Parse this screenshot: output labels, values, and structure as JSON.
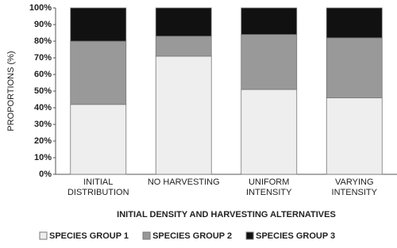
{
  "chart_data": {
    "type": "stacked_bar",
    "x_label": "INITIAL DENSITY AND HARVESTING ALTERNATIVES",
    "y_label": "PROPORTIONS (%)",
    "categories": [
      "INITIAL\nDISTRIBUTION",
      "NO HARVESTING",
      "UNIFORM\nINTENSITY",
      "VARYING\nINTENSITY"
    ],
    "series": [
      {
        "name": "SPECIES GROUP 1",
        "color": "#eeeeee",
        "values": [
          42,
          71,
          51,
          46
        ]
      },
      {
        "name": "SPECIES GROUP 2",
        "color": "#999999",
        "values": [
          38,
          12,
          33,
          36
        ]
      },
      {
        "name": "SPECIES GROUP 3",
        "color": "#111111",
        "values": [
          20,
          17,
          16,
          18
        ]
      }
    ],
    "ylim": [
      0,
      100
    ],
    "yticks": [
      {
        "value": 0,
        "label": "0%"
      },
      {
        "value": 10,
        "label": "10%"
      },
      {
        "value": 20,
        "label": "20%"
      },
      {
        "value": 30,
        "label": "30%"
      },
      {
        "value": 40,
        "label": "40%"
      },
      {
        "value": 50,
        "label": "50%"
      },
      {
        "value": 60,
        "label": "60%"
      },
      {
        "value": 70,
        "label": "70%"
      },
      {
        "value": 80,
        "label": "80%"
      },
      {
        "value": 90,
        "label": "90%"
      },
      {
        "value": 100,
        "label": "100%"
      }
    ]
  }
}
